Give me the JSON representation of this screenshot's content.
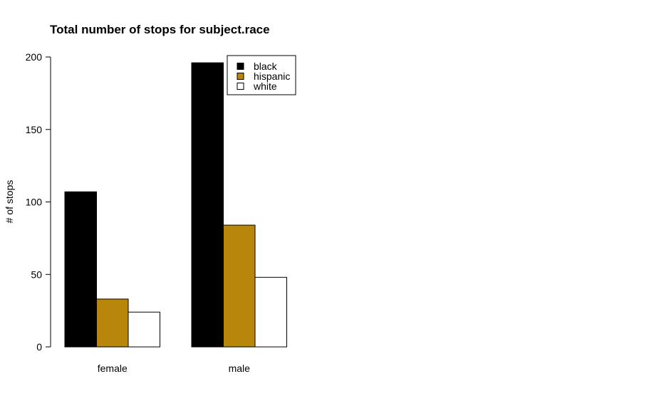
{
  "chart_data": {
    "type": "bar",
    "title": "Total number of stops for subject.race",
    "xlabel": "",
    "ylabel": "# of stops",
    "categories": [
      "female",
      "male"
    ],
    "series": [
      {
        "name": "black",
        "values": [
          107,
          196
        ],
        "color": "#000000"
      },
      {
        "name": "hispanic",
        "values": [
          33,
          84
        ],
        "color": "#B8860B"
      },
      {
        "name": "white",
        "values": [
          24,
          48
        ],
        "color": "#FFFFFF"
      }
    ],
    "ylim": [
      0,
      200
    ],
    "yticks": [
      0,
      50,
      100,
      150,
      200
    ],
    "grid": false,
    "legend_position": "top-right"
  }
}
